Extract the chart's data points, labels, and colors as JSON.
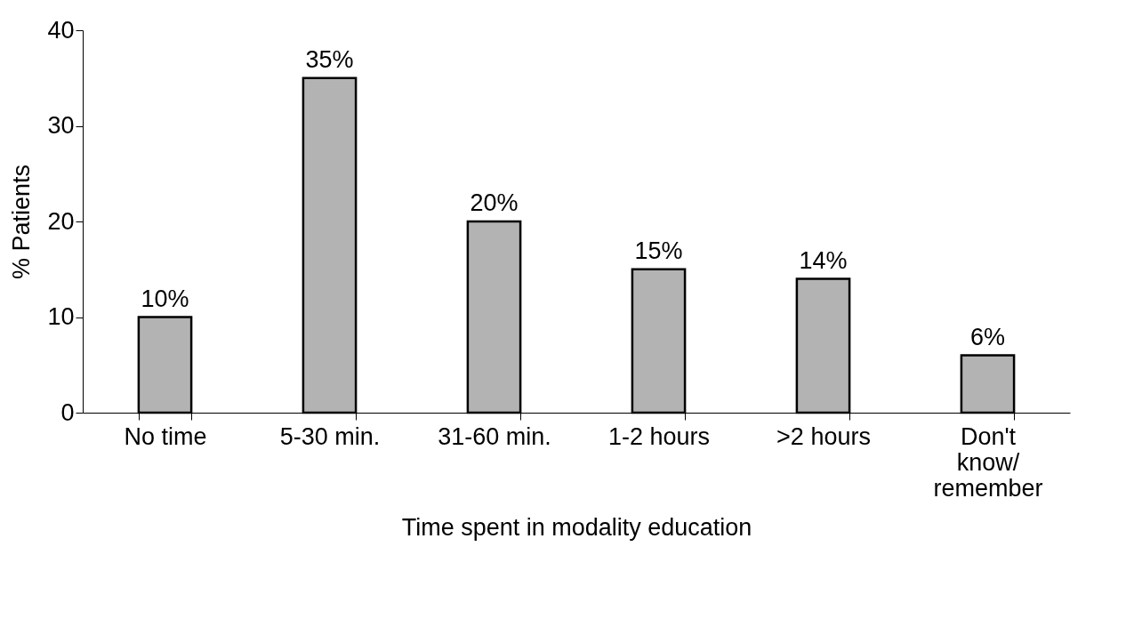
{
  "chart_data": {
    "type": "bar",
    "xlabel": "Time spent in modality education",
    "ylabel": "% Patients",
    "categories": [
      "No time",
      "5-30 min.",
      "31-60 min.",
      "1-2 hours",
      ">2 hours",
      "Don't\nknow/\nremember"
    ],
    "values": [
      10,
      35,
      20,
      15,
      14,
      6
    ],
    "value_labels": [
      "10%",
      "35%",
      "20%",
      "15%",
      "14%",
      "6%"
    ],
    "color": "#b3b3b3",
    "ylim": [
      0,
      40
    ],
    "yticks": [
      0,
      10,
      20,
      30,
      40
    ],
    "grid": false
  }
}
